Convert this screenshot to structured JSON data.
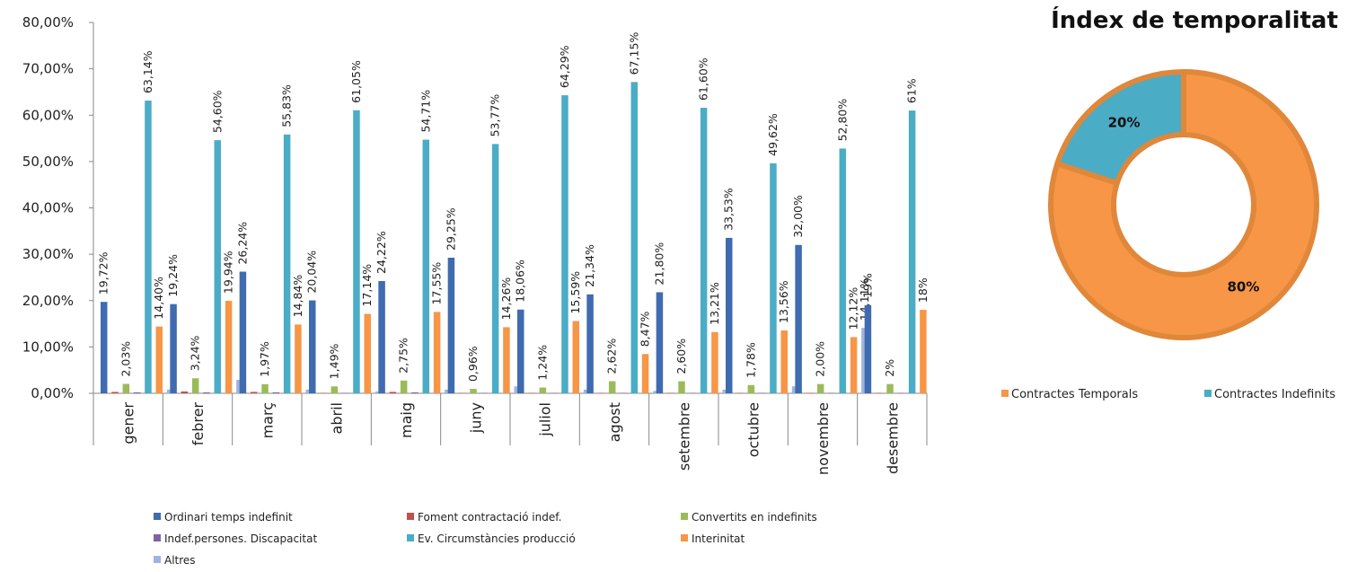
{
  "chart_data": [
    {
      "type": "bar",
      "title": "",
      "xlabel": "",
      "ylabel": "",
      "ylim": [
        0,
        80
      ],
      "yticks": [
        "0,00%",
        "10,00%",
        "20,00%",
        "30,00%",
        "40,00%",
        "50,00%",
        "60,00%",
        "70,00%",
        "80,00%"
      ],
      "grid": false,
      "legend_position": "bottom",
      "categories": [
        "gener",
        "febrer",
        "març",
        "abril",
        "maig",
        "juny",
        "juliol",
        "agost",
        "setembre",
        "octubre",
        "novembre",
        "desembre"
      ],
      "series": [
        {
          "name": "Ordinari temps indefinit",
          "color": "#3F6BB0",
          "values": [
            19.72,
            19.24,
            26.24,
            20.04,
            24.22,
            29.25,
            18.06,
            21.34,
            21.8,
            33.53,
            32.0,
            19
          ],
          "labels": [
            "19,72%",
            "19,24%",
            "26,24%",
            "20,04%",
            "24,22%",
            "29,25%",
            "18,06%",
            "21,34%",
            "21,80%",
            "33,53%",
            "32,00%",
            "19%"
          ]
        },
        {
          "name": "Foment contractació indef.",
          "color": "#C0504D",
          "values": [
            0.3,
            0.4,
            0.3,
            0.1,
            0.3,
            0.1,
            0.1,
            0.1,
            0.1,
            0.1,
            0.1,
            0.1
          ],
          "labels": []
        },
        {
          "name": "Convertits en indefinits",
          "color": "#9BBB59",
          "values": [
            2.03,
            3.24,
            1.97,
            1.49,
            2.75,
            0.96,
            1.24,
            2.62,
            2.6,
            1.78,
            2.0,
            2
          ],
          "labels": [
            "2,03%",
            "3,24%",
            "1,97%",
            "1,49%",
            "2,75%",
            "0,96%",
            "1,24%",
            "2,62%",
            "2,60%",
            "1,78%",
            "2,00%",
            "2%"
          ]
        },
        {
          "name": "Indef.persones. Discapacitat",
          "color": "#8064A2",
          "values": [
            0.2,
            0.2,
            0.2,
            0.1,
            0.2,
            0.1,
            0.1,
            0.1,
            0.1,
            0.1,
            0.1,
            0.1
          ],
          "labels": []
        },
        {
          "name": "Ev. Circumstàncies producció",
          "color": "#4BACC6",
          "values": [
            63.14,
            54.6,
            55.83,
            61.05,
            54.71,
            53.77,
            64.29,
            67.15,
            61.6,
            49.62,
            52.8,
            61
          ],
          "labels": [
            "63,14%",
            "54,60%",
            "55,83%",
            "61,05%",
            "54,71%",
            "53,77%",
            "64,29%",
            "67,15%",
            "61,60%",
            "49,62%",
            "52,80%",
            "61%"
          ]
        },
        {
          "name": "Interinitat",
          "color": "#F79646",
          "values": [
            14.4,
            19.94,
            14.84,
            17.14,
            17.55,
            14.26,
            15.59,
            8.47,
            13.21,
            13.56,
            12.12,
            18
          ],
          "labels": [
            "14,40%",
            "19,94%",
            "14,84%",
            "17,14%",
            "17,55%",
            "14,26%",
            "15,59%",
            "8,47%",
            "13,21%",
            "13,56%",
            "12,12%",
            "18%"
          ]
        },
        {
          "name": "Altres",
          "color": "#9EB4E0",
          "values": [
            0.8,
            2.9,
            0.8,
            0.4,
            0.8,
            1.5,
            0.8,
            0.5,
            0.8,
            1.5,
            14.11,
            0
          ],
          "labels": [
            "",
            "",
            "",
            "",
            "",
            "",
            "",
            "",
            "",
            "",
            "14,11%",
            ""
          ]
        }
      ]
    },
    {
      "type": "pie",
      "style": "donut",
      "title": "Índex de temporalitat",
      "legend_position": "bottom",
      "slices": [
        {
          "name": "Contractes Temporals",
          "value": 80,
          "label": "80%",
          "color": "#F79646",
          "border": "#E0873A"
        },
        {
          "name": "Contractes Indefinits",
          "value": 20,
          "label": "20%",
          "color": "#4BACC6",
          "border": "#E0873A"
        }
      ]
    }
  ]
}
